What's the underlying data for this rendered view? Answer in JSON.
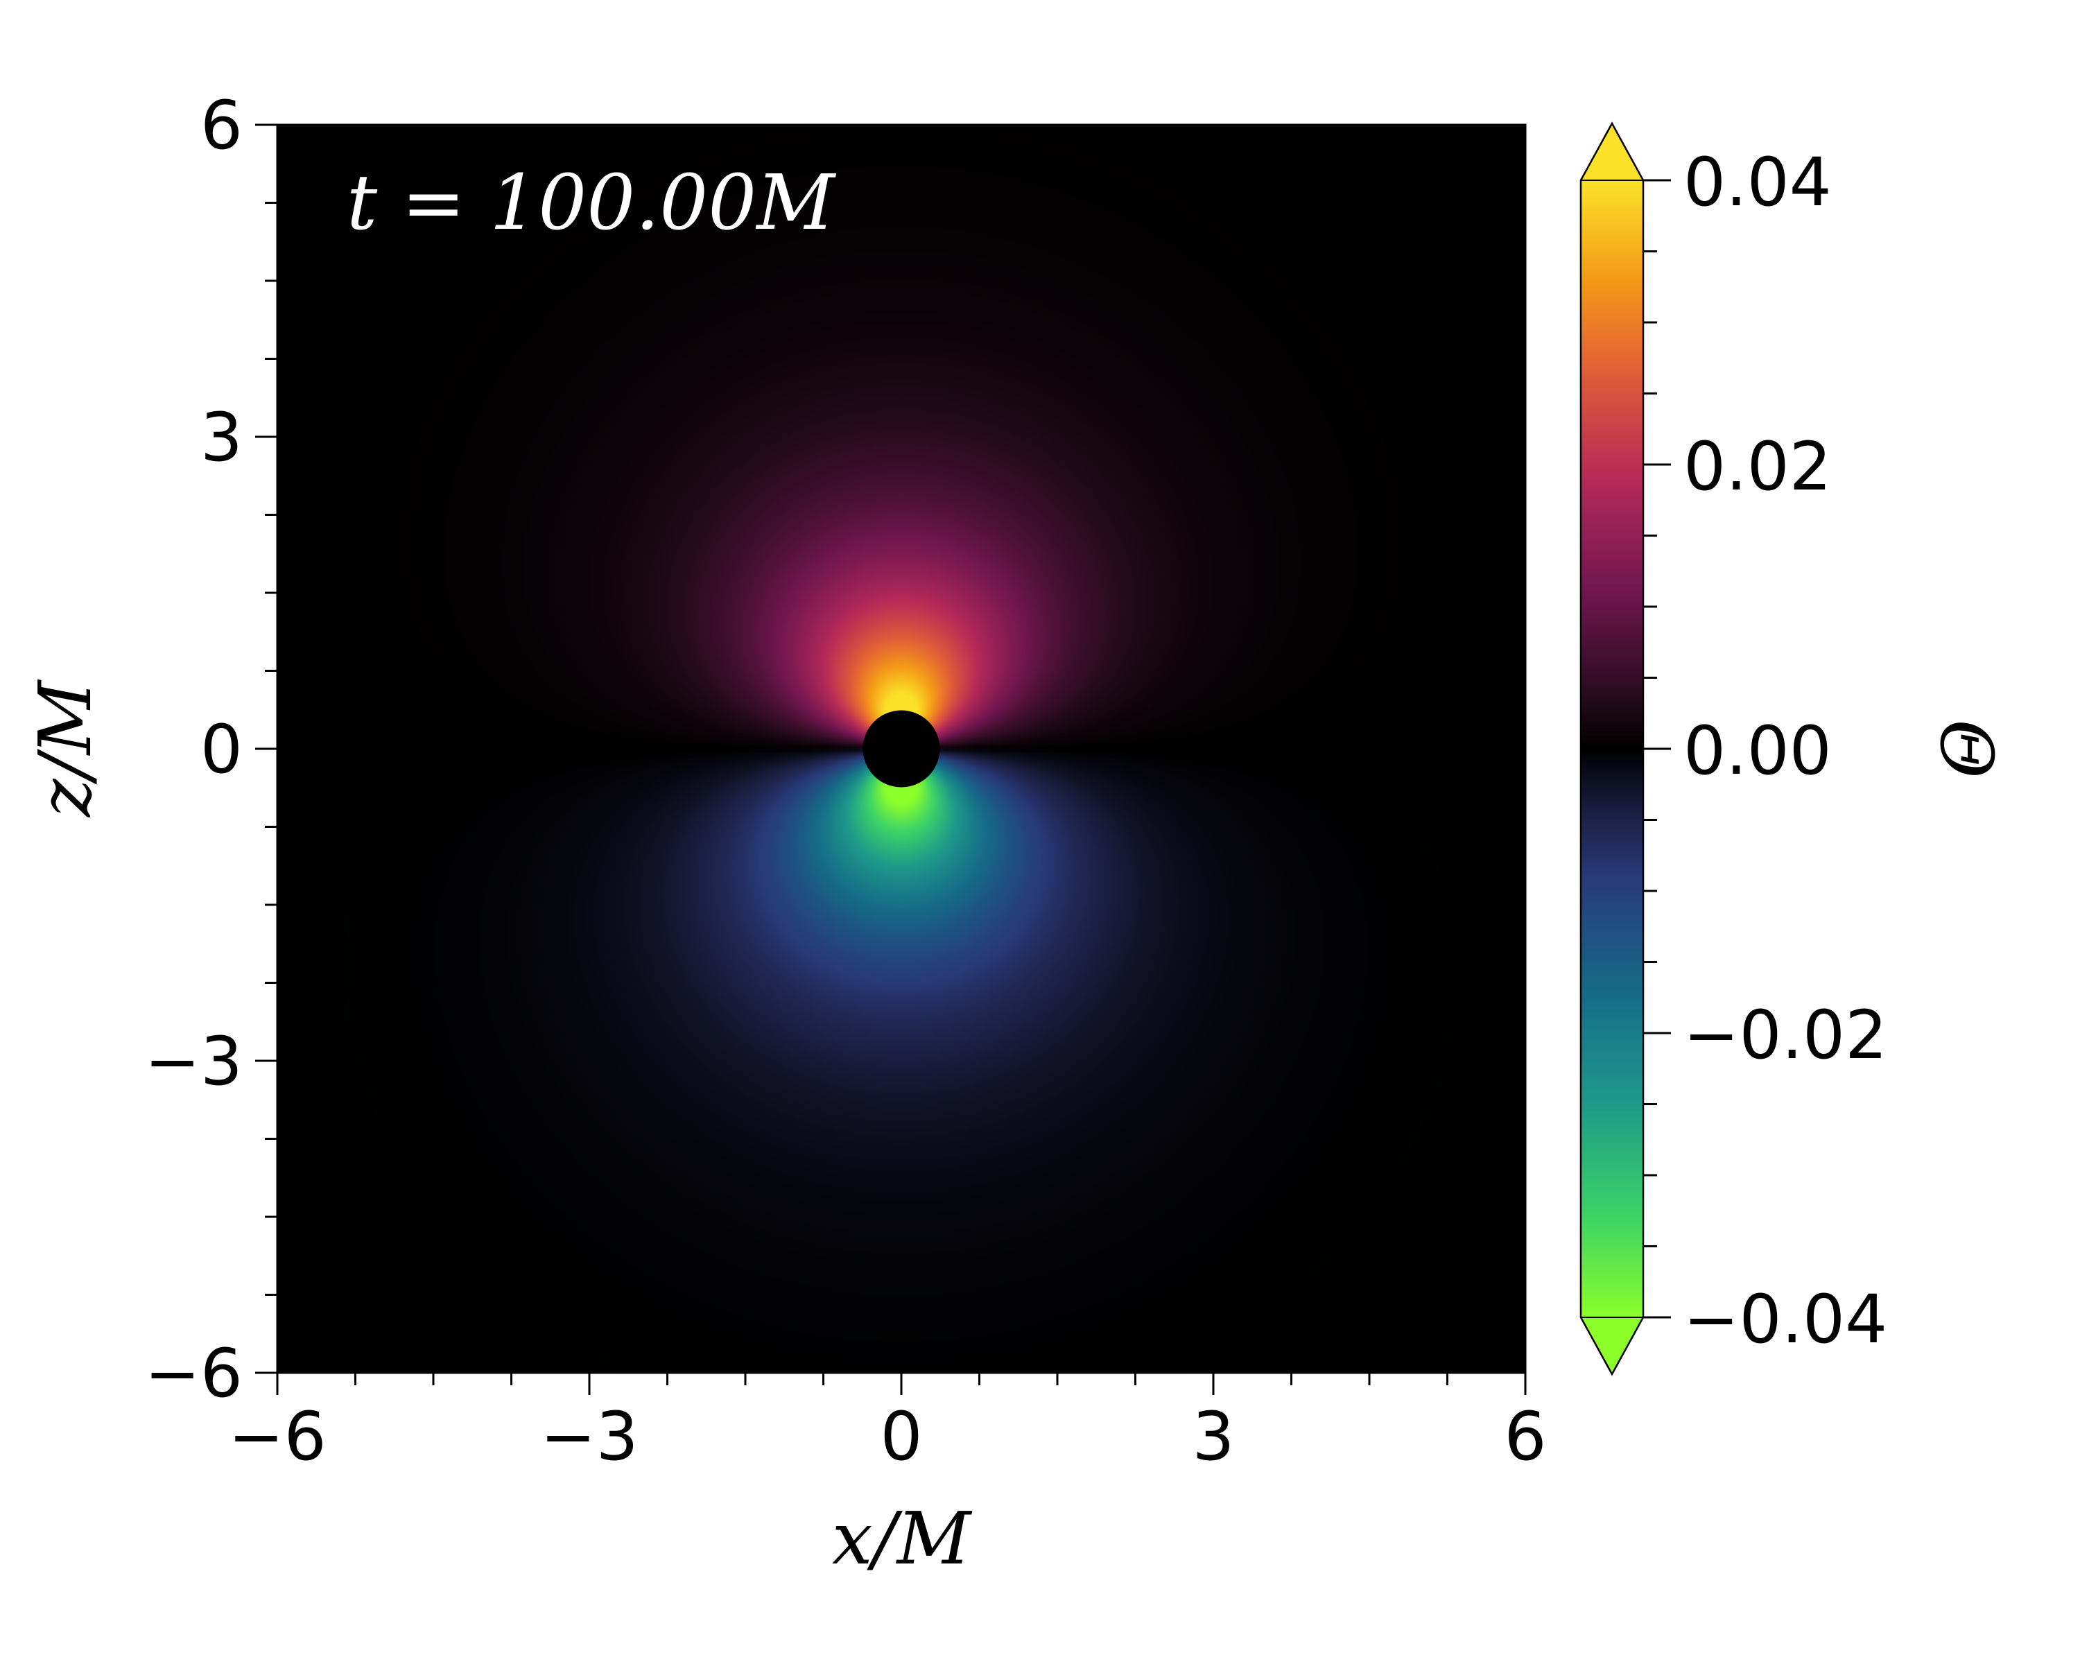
{
  "chart_data": {
    "type": "heatmap",
    "annotation": "t = 100.00M",
    "xlabel": "x/M",
    "ylabel": "z/M",
    "xlim": [
      -6,
      6
    ],
    "ylim": [
      -6,
      6
    ],
    "x_ticks": [
      -6,
      -3,
      0,
      3,
      6
    ],
    "y_ticks": [
      -6,
      -3,
      0,
      3,
      6
    ],
    "x_tick_labels": [
      "−6",
      "−3",
      "0",
      "3",
      "6"
    ],
    "y_tick_labels": [
      "−6",
      "−3",
      "0",
      "3",
      "6"
    ],
    "minor_tick_step": 0.75,
    "grid": false,
    "field": {
      "pattern": "dipole",
      "positive_lobe": "above horizon (z > 0)",
      "negative_lobe": "below horizon (z < 0)",
      "horizon_radius": 0.37,
      "horizon_color": "#000000",
      "peak_abs_value": 0.04
    },
    "colorbar": {
      "label": "Θ",
      "range": [
        -0.04,
        0.04
      ],
      "extend": "both",
      "ticks": [
        0.04,
        0.02,
        0.0,
        -0.02,
        -0.04
      ],
      "tick_labels": [
        "0.04",
        "0.02",
        "0.00",
        "−0.02",
        "−0.04"
      ],
      "minor_tick_step": 0.005,
      "placement": "right",
      "colormap_stops": [
        {
          "value": -0.04,
          "color": "#8cff2a"
        },
        {
          "value": -0.033,
          "color": "#3fd466"
        },
        {
          "value": -0.025,
          "color": "#1e9a8a"
        },
        {
          "value": -0.017,
          "color": "#166a88"
        },
        {
          "value": -0.009,
          "color": "#283a78"
        },
        {
          "value": -0.004,
          "color": "#1a1c3c"
        },
        {
          "value": 0.0,
          "color": "#000000"
        },
        {
          "value": 0.004,
          "color": "#2a0c1e"
        },
        {
          "value": 0.011,
          "color": "#701650"
        },
        {
          "value": 0.019,
          "color": "#b52a58"
        },
        {
          "value": 0.026,
          "color": "#e05a3a"
        },
        {
          "value": 0.033,
          "color": "#f59a18"
        },
        {
          "value": 0.04,
          "color": "#fbe228"
        }
      ]
    }
  }
}
